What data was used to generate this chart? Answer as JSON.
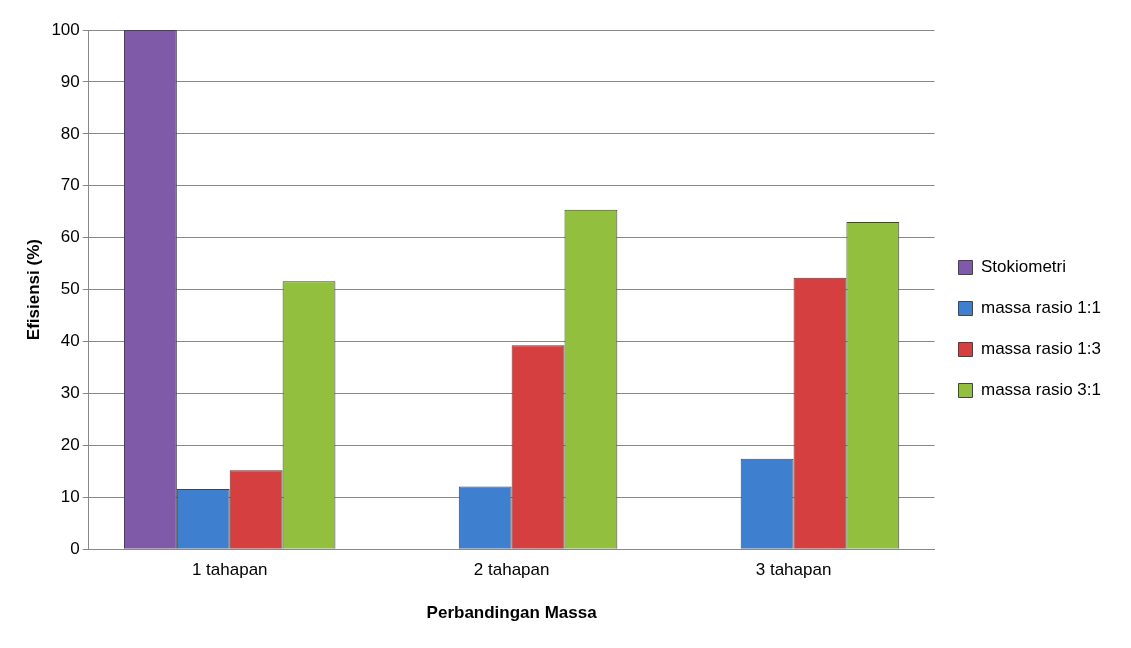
{
  "chart_data": {
    "type": "bar",
    "xlabel": "Perbandingan Massa",
    "ylabel": "Efisiensi (%)",
    "categories": [
      "1 tahapan",
      "2 tahapan",
      "3 tahapan"
    ],
    "series": [
      {
        "name": "Stokiometri",
        "color": "#7f5aa8",
        "values": [
          100,
          null,
          null
        ]
      },
      {
        "name": "massa rasio 1:1",
        "color": "#3f7fcf",
        "values": [
          11.6,
          12.1,
          17.4
        ]
      },
      {
        "name": "massa rasio 1:3",
        "color": "#d53f3f",
        "values": [
          15.2,
          39.3,
          52.3
        ]
      },
      {
        "name": "massa rasio 3:1",
        "color": "#92bf3e",
        "values": [
          51.6,
          65.4,
          63
        ]
      }
    ],
    "ylim": [
      0,
      100
    ],
    "yticks": [
      0,
      10,
      20,
      30,
      40,
      50,
      60,
      70,
      80,
      90,
      100
    ],
    "grid": "y",
    "legend": "right"
  }
}
